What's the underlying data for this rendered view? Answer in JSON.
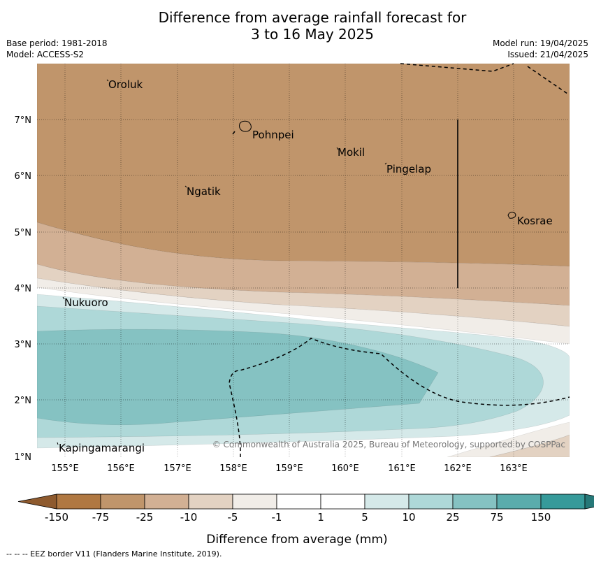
{
  "title_line1": "Difference from average rainfall forecast for",
  "title_line2": "3 to 16 May 2025",
  "meta": {
    "base_period": "Base period: 1981-2018",
    "model": "Model: ACCESS-S2",
    "model_run": "Model run: 19/04/2025",
    "issued": "Issued: 21/04/2025"
  },
  "map": {
    "lon_ticks": [
      "155°E",
      "156°E",
      "157°E",
      "158°E",
      "159°E",
      "160°E",
      "161°E",
      "162°E",
      "163°E"
    ],
    "lat_ticks": [
      "1°N",
      "2°N",
      "3°N",
      "4°N",
      "5°N",
      "6°N",
      "7°N"
    ],
    "places": [
      "Oroluk",
      "Pohnpei",
      "Mokil",
      "Pingelap",
      "Ngatik",
      "Kosrae",
      "Nukuoro",
      "Kapingamarangi"
    ],
    "copyright": "© Commonwealth of Australia 2025, Bureau of Meteorology, supported by COSPPac",
    "colors": {
      "dark_brown": "#c0956b",
      "mid_brown": "#d2b094",
      "light_brown": "#e3d2c2",
      "pale_brown": "#f1ede8",
      "white": "#ffffff",
      "pale_teal": "#d5e9e9",
      "light_teal": "#aed8d8",
      "mid_teal": "#85c2c2"
    }
  },
  "colorbar": {
    "ticks": [
      "-150",
      "-75",
      "-25",
      "-10",
      "-5",
      "-1",
      "1",
      "5",
      "10",
      "25",
      "75",
      "150"
    ],
    "colors": [
      "#b07842",
      "#c0956b",
      "#d2b094",
      "#e3d2c2",
      "#f1ede8",
      "#ffffff",
      "#ffffff",
      "#d5e9e9",
      "#aed8d8",
      "#85c2c2",
      "#5aacac",
      "#369a9a"
    ],
    "extend_low": "#8e5a2e",
    "extend_high": "#267878",
    "label": "Difference from average (mm)"
  },
  "footer": "--  --  -- EEZ border V11 (Flanders Marine Institute, 2019)."
}
